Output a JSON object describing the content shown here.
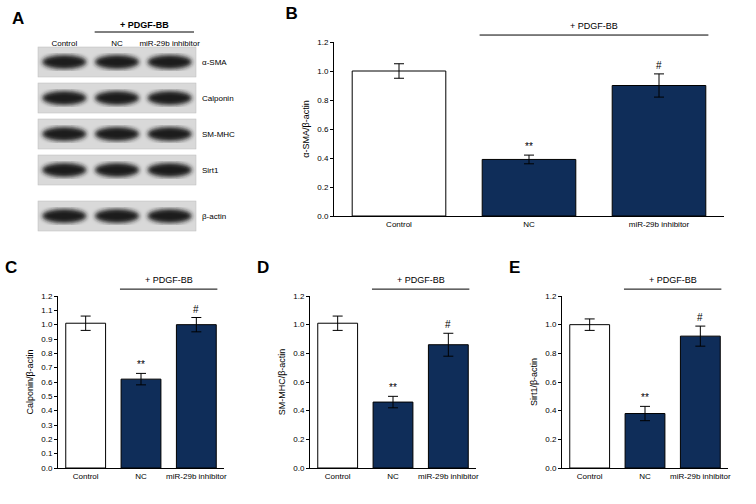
{
  "blot": {
    "title": "A",
    "lanes": [
      "Control",
      "NC",
      "miR-29b inhibitor"
    ],
    "treatment": {
      "text": "+ PDGF-BB",
      "lanes": [
        "NC",
        "miR-29b inhibitor"
      ]
    },
    "rows": [
      "α-SMA",
      "Calponin",
      "SM-MHC",
      "Sirt1",
      "β-actin"
    ]
  },
  "chart_data": [
    {
      "type": "bar",
      "title": "B",
      "y_label": "α-SMA/β-actin",
      "categories": [
        "Control",
        "NC",
        "miR-29b inhibitor"
      ],
      "values": [
        1.0,
        0.39,
        0.9
      ],
      "errors": [
        0.05,
        0.03,
        0.08
      ],
      "colors": [
        "#ffffff",
        "#0f2d59",
        "#0f2d59"
      ],
      "ylim": [
        0,
        1.2
      ],
      "yticks": [
        {
          "value": 0,
          "label": "0.0"
        },
        0.2,
        0.4,
        0.6,
        0.8,
        {
          "value": 1,
          "label": "1.0"
        },
        1.2
      ],
      "grid": false,
      "annotations": [
        {
          "text": "+ PDGF-BB",
          "categories": [
            "NC",
            "miR-29b inhibitor"
          ]
        },
        {
          "text": "**",
          "category": "NC"
        },
        {
          "text": "#",
          "category": "miR-29b inhibitor"
        }
      ]
    },
    {
      "type": "bar",
      "title": "C",
      "y_label": "Calponin/β-actin",
      "categories": [
        "Control",
        "NC",
        "miR-29b inhibitor"
      ],
      "values": [
        1.01,
        0.62,
        1.0
      ],
      "errors": [
        0.05,
        0.04,
        0.05
      ],
      "colors": [
        "#ffffff",
        "#0f2d59",
        "#0f2d59"
      ],
      "ylim": [
        0,
        1.2
      ],
      "yticks": [
        {
          "value": 0,
          "label": "0.0"
        },
        0.1,
        0.2,
        0.3,
        0.4,
        0.5,
        0.6,
        0.7,
        0.8,
        0.9,
        {
          "value": 1,
          "label": "1.0"
        },
        1.1,
        1.2
      ],
      "grid": false,
      "annotations": [
        {
          "text": "+ PDGF-BB",
          "categories": [
            "NC",
            "miR-29b inhibitor"
          ]
        },
        {
          "text": "**",
          "category": "NC"
        },
        {
          "text": "#",
          "category": "miR-29b inhibitor"
        }
      ]
    },
    {
      "type": "bar",
      "title": "D",
      "y_label": "SM-MHC/β-actin",
      "categories": [
        "Control",
        "NC",
        "miR-29b inhibitor"
      ],
      "values": [
        1.01,
        0.46,
        0.86
      ],
      "errors": [
        0.05,
        0.04,
        0.08
      ],
      "colors": [
        "#ffffff",
        "#0f2d59",
        "#0f2d59"
      ],
      "ylim": [
        0,
        1.2
      ],
      "yticks": [
        {
          "value": 0,
          "label": "0.0"
        },
        0.2,
        0.4,
        0.6,
        0.8,
        {
          "value": 1,
          "label": "1.0"
        },
        1.2
      ],
      "grid": false,
      "annotations": [
        {
          "text": "+ PDGF-BB",
          "categories": [
            "NC",
            "miR-29b inhibitor"
          ]
        },
        {
          "text": "**",
          "category": "NC"
        },
        {
          "text": "#",
          "category": "miR-29b inhibitor"
        }
      ]
    },
    {
      "type": "bar",
      "title": "E",
      "y_label": "Sirt1/β-actin",
      "categories": [
        "Control",
        "NC",
        "miR-29b inhibitor"
      ],
      "values": [
        1.0,
        0.38,
        0.92
      ],
      "errors": [
        0.04,
        0.05,
        0.07
      ],
      "colors": [
        "#ffffff",
        "#0f2d59",
        "#0f2d59"
      ],
      "ylim": [
        0,
        1.2
      ],
      "yticks": [
        {
          "value": 0,
          "label": "0.0"
        },
        0.2,
        0.4,
        0.6,
        0.8,
        {
          "value": 1,
          "label": "1.0"
        },
        1.2
      ],
      "grid": false,
      "annotations": [
        {
          "text": "+ PDGF-BB",
          "categories": [
            "NC",
            "miR-29b inhibitor"
          ]
        },
        {
          "text": "**",
          "category": "NC"
        },
        {
          "text": "#",
          "category": "miR-29b inhibitor"
        }
      ]
    }
  ]
}
